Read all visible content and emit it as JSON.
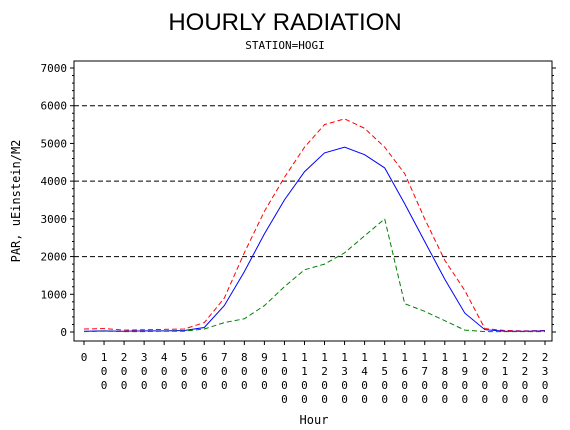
{
  "chart_data": {
    "type": "line",
    "title": "HOURLY RADIATION",
    "subtitle": "STATION=HOGI",
    "xlabel": "Hour",
    "ylabel": "PAR, uEinstein/M2",
    "ylim": [
      0,
      7000
    ],
    "yticks": [
      0,
      1000,
      2000,
      3000,
      4000,
      5000,
      6000,
      7000
    ],
    "reference_lines": [
      2000,
      4000,
      6000
    ],
    "x": [
      0,
      100,
      200,
      300,
      400,
      500,
      600,
      700,
      800,
      900,
      1000,
      1100,
      1200,
      1300,
      1400,
      1500,
      1600,
      1700,
      1800,
      1900,
      2000,
      2100,
      2200,
      2300
    ],
    "x_tick_labels": [
      "0",
      "100",
      "200",
      "300",
      "400",
      "500",
      "600",
      "700",
      "800",
      "900",
      "1000",
      "1100",
      "1200",
      "1300",
      "1400",
      "1500",
      "1600",
      "1700",
      "1800",
      "1900",
      "2000",
      "2100",
      "2200",
      "2300"
    ],
    "series": [
      {
        "color": "#ff0000",
        "dash": "5,3",
        "values": [
          80,
          90,
          50,
          60,
          70,
          80,
          250,
          900,
          2100,
          3200,
          4100,
          4900,
          5500,
          5650,
          5400,
          4900,
          4200,
          3000,
          1900,
          1100,
          90,
          40,
          30,
          40
        ]
      },
      {
        "color": "#0000ff",
        "dash": "",
        "values": [
          20,
          30,
          20,
          30,
          30,
          40,
          120,
          700,
          1600,
          2600,
          3500,
          4250,
          4750,
          4900,
          4700,
          4350,
          3400,
          2400,
          1400,
          500,
          60,
          20,
          20,
          30
        ]
      },
      {
        "color": "#008000",
        "dash": "5,3",
        "values": [
          10,
          20,
          10,
          10,
          20,
          20,
          80,
          250,
          350,
          700,
          1200,
          1650,
          1800,
          2100,
          2550,
          3000,
          750,
          550,
          300,
          50,
          10,
          10,
          10,
          10
        ]
      }
    ]
  }
}
